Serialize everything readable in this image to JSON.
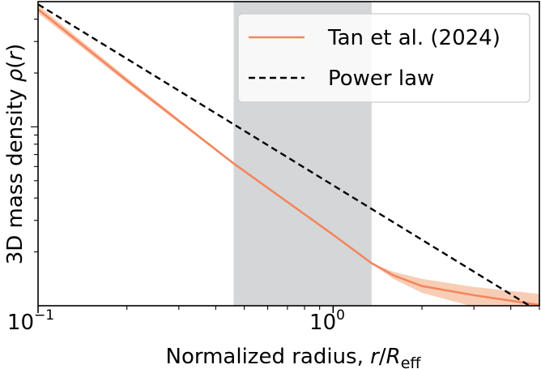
{
  "chart_data": {
    "type": "line",
    "xscale": "log",
    "yscale": "log",
    "xlim": [
      0.1,
      5.0
    ],
    "ylim_decades": [
      0,
      1.7
    ],
    "x_ticks": [
      {
        "value": 0.1,
        "base": "10",
        "exp": "−1"
      },
      {
        "value": 1.0,
        "base": "10",
        "exp": "0"
      }
    ],
    "xlabel": {
      "main": "Normalized radius, ",
      "r": "r",
      "slash": "/",
      "R": "R",
      "sub": "eff"
    },
    "ylabel": {
      "main": "3D mass density ",
      "rho": "ρ",
      "open": "(",
      "r": "r",
      "close": ")"
    },
    "shaded_region": {
      "x_start": 0.46,
      "x_end": 1.35,
      "color": "#d5d6d8"
    },
    "series": [
      {
        "name": "Tan et al. (2024)",
        "style": "solid",
        "color": "#f4865f",
        "band_color": "#f6c6a8",
        "x": [
          0.1,
          0.2,
          0.46,
          1.0,
          1.35,
          1.6,
          2.0,
          3.0,
          5.0
        ],
        "y_log": [
          1.657,
          1.259,
          0.795,
          0.397,
          0.238,
          0.17,
          0.11,
          0.059,
          0.004
        ],
        "y_low": [
          1.635,
          1.245,
          0.79,
          0.395,
          0.236,
          0.15,
          0.072,
          -0.006,
          -0.045
        ],
        "y_high": [
          1.68,
          1.275,
          0.8,
          0.4,
          0.24,
          0.19,
          0.15,
          0.105,
          0.066
        ]
      },
      {
        "name": "Power law",
        "style": "dashed",
        "color": "#000000",
        "x": [
          0.1,
          5.0
        ],
        "y_log": [
          1.685,
          -0.034
        ]
      }
    ],
    "legend": {
      "position": "top-right"
    },
    "grid": false
  }
}
